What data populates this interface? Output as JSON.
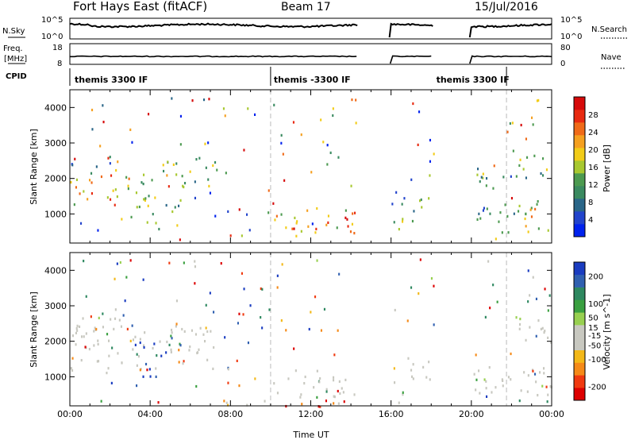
{
  "header": {
    "station": "Fort Hays East (fitACF)",
    "beam": "Beam 17",
    "date": "15/Jul/2016"
  },
  "top_panels": {
    "nsky_label": "N.Sky",
    "nsky_ticks": [
      "10^5",
      "10^0"
    ],
    "nsearch_label": "N.Search",
    "nsearch_ticks": [
      "10^5",
      "10^0"
    ],
    "freq_label_1": "Freq.",
    "freq_label_2": "[MHz]",
    "freq_ticks": [
      "18",
      "8"
    ],
    "nave_label": "Nave",
    "nave_ticks": [
      "80",
      "0"
    ],
    "cpid_label": "CPID",
    "cpid_segments": [
      {
        "label": "themis 3300 IF",
        "start": 0,
        "end": 10
      },
      {
        "label": "themis -3300 IF",
        "start": 10,
        "end": 18
      },
      {
        "label": "themis 3300 IF",
        "start": 18,
        "end": 24
      }
    ],
    "data_gaps_hours": [
      [
        14.33,
        16.0
      ],
      [
        18.1,
        20.0
      ]
    ]
  },
  "chart_data": [
    {
      "type": "heatmap",
      "name": "power",
      "xlabel": "",
      "ylabel": "Slant Range [km]",
      "xlim": [
        0,
        24
      ],
      "ylim": [
        180,
        4500
      ],
      "yticks": [
        1000,
        2000,
        3000,
        4000
      ],
      "colorbar": {
        "label": "Power [dB]",
        "range": [
          0,
          32
        ],
        "ticks": [
          "28",
          "24",
          "20",
          "16",
          "12",
          "8",
          "4"
        ],
        "tick_values": [
          28,
          24,
          20,
          16,
          12,
          8,
          4
        ],
        "colors": [
          "#0022ee",
          "#2244cc",
          "#2a6688",
          "#3a8a60",
          "#4c9a50",
          "#a8c830",
          "#f2cc18",
          "#f5a020",
          "#f06a18",
          "#e82a10",
          "#d60a0a"
        ]
      },
      "regions": [
        {
          "t": [
            0.0,
            2.2
          ],
          "r": [
            1250,
            2150
          ],
          "level": 0.68
        },
        {
          "t": [
            2.2,
            4.0
          ],
          "r": [
            1400,
            2300
          ],
          "level": 0.55
        },
        {
          "t": [
            4.0,
            6.0
          ],
          "r": [
            1700,
            2600
          ],
          "level": 0.45
        },
        {
          "t": [
            6.0,
            7.2
          ],
          "r": [
            1800,
            2700
          ],
          "level": 0.4
        },
        {
          "t": [
            3.0,
            5.5
          ],
          "r": [
            700,
            1500
          ],
          "level": 0.38
        },
        {
          "t": [
            10.0,
            12.0
          ],
          "r": [
            500,
            1200
          ],
          "level": 0.58
        },
        {
          "t": [
            12.0,
            14.3
          ],
          "r": [
            450,
            1250
          ],
          "level": 0.72
        },
        {
          "t": [
            16.1,
            18.0
          ],
          "r": [
            800,
            1600
          ],
          "level": 0.35
        },
        {
          "t": [
            20.0,
            21.5
          ],
          "r": [
            700,
            1400
          ],
          "level": 0.38
        },
        {
          "t": [
            21.5,
            24.0
          ],
          "r": [
            500,
            1400
          ],
          "level": 0.6
        },
        {
          "t": [
            22.2,
            24.0
          ],
          "r": [
            2000,
            2700
          ],
          "level": 0.4
        },
        {
          "t": [
            20.2,
            21.5
          ],
          "r": [
            1600,
            2400
          ],
          "level": 0.3
        }
      ]
    },
    {
      "type": "heatmap",
      "name": "velocity",
      "xlabel": "Time UT",
      "ylabel": "Slant Range [km]",
      "xlim": [
        0,
        24
      ],
      "ylim": [
        180,
        4500
      ],
      "xticks": [
        "00:00",
        "04:00",
        "08:00",
        "12:00",
        "16:00",
        "20:00",
        "00:00"
      ],
      "yticks": [
        1000,
        2000,
        3000,
        4000
      ],
      "colorbar": {
        "label": "Velocity [m s^-1]",
        "range": [
          -250,
          250
        ],
        "ticks": [
          "200",
          "100",
          "50",
          "15",
          "-15",
          "-50",
          "-100",
          "-200"
        ],
        "tick_values": [
          200,
          100,
          50,
          15,
          -15,
          -50,
          -100,
          -200
        ],
        "colors": [
          "#dd0000",
          "#f03a10",
          "#f58a18",
          "#f3b818",
          "#c8c8c0",
          "#c8c8c0",
          "#98d050",
          "#3aa040",
          "#2e8860",
          "#3060b0",
          "#1a3cc0"
        ]
      },
      "regions": [
        {
          "t": [
            0.0,
            7.2
          ],
          "r": [
            1250,
            2700
          ],
          "level": 0.5
        },
        {
          "t": [
            3.2,
            4.8
          ],
          "r": [
            900,
            2000
          ],
          "level": 0.95
        },
        {
          "t": [
            4.5,
            6.0
          ],
          "r": [
            1900,
            2400
          ],
          "level": 0.7
        },
        {
          "t": [
            10.0,
            14.3
          ],
          "r": [
            450,
            1250
          ],
          "level": 0.5
        },
        {
          "t": [
            16.1,
            18.0
          ],
          "r": [
            800,
            1600
          ],
          "level": 0.5
        },
        {
          "t": [
            20.0,
            24.0
          ],
          "r": [
            500,
            1400
          ],
          "level": 0.5
        },
        {
          "t": [
            22.2,
            24.0
          ],
          "r": [
            2000,
            2700
          ],
          "level": 0.5
        },
        {
          "t": [
            7.0,
            14.3
          ],
          "r": [
            180,
            400
          ],
          "level": 0.25
        }
      ]
    }
  ]
}
